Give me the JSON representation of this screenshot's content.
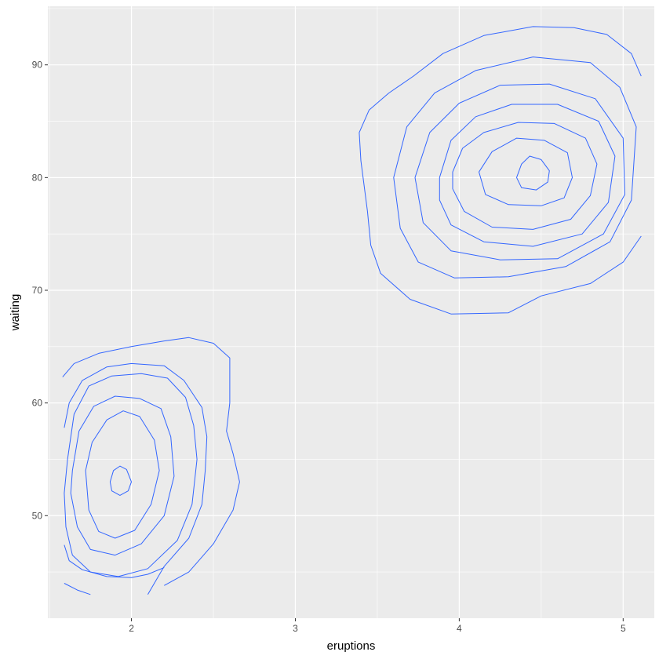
{
  "chart_data": {
    "type": "contour",
    "title": "",
    "xlabel": "eruptions",
    "ylabel": "waiting",
    "xlim": [
      1.49,
      5.19
    ],
    "ylim": [
      40.9,
      95.2
    ],
    "x_ticks": [
      2,
      3,
      4,
      5
    ],
    "y_ticks": [
      50,
      60,
      70,
      80,
      90
    ],
    "grid": true,
    "legend": "none",
    "colors": {
      "panel": "#ebebeb",
      "grid": "#ffffff",
      "line": "#3366ff",
      "tick_text": "#4d4d4d"
    },
    "contours": [
      {
        "name": "",
        "closed": true,
        "points": [
          [
            4.35,
            80
          ],
          [
            4.38,
            81.2
          ],
          [
            4.43,
            81.9
          ],
          [
            4.5,
            81.6
          ],
          [
            4.55,
            80.6
          ],
          [
            4.54,
            79.6
          ],
          [
            4.47,
            78.9
          ],
          [
            4.38,
            79.1
          ],
          [
            4.35,
            80
          ]
        ]
      },
      {
        "name": "",
        "closed": true,
        "points": [
          [
            4.12,
            80.5
          ],
          [
            4.2,
            82.3
          ],
          [
            4.35,
            83.5
          ],
          [
            4.52,
            83.3
          ],
          [
            4.66,
            82.2
          ],
          [
            4.69,
            80
          ],
          [
            4.64,
            78.2
          ],
          [
            4.5,
            77.5
          ],
          [
            4.3,
            77.6
          ],
          [
            4.16,
            78.5
          ],
          [
            4.12,
            80.5
          ]
        ]
      },
      {
        "name": "",
        "closed": true,
        "points": [
          [
            3.96,
            80.5
          ],
          [
            4.02,
            82.6
          ],
          [
            4.15,
            84
          ],
          [
            4.36,
            84.9
          ],
          [
            4.58,
            84.8
          ],
          [
            4.77,
            83.5
          ],
          [
            4.84,
            81.2
          ],
          [
            4.8,
            78.4
          ],
          [
            4.68,
            76.3
          ],
          [
            4.45,
            75.4
          ],
          [
            4.2,
            75.6
          ],
          [
            4.03,
            77
          ],
          [
            3.96,
            79
          ],
          [
            3.96,
            80.5
          ]
        ]
      },
      {
        "name": "",
        "closed": true,
        "points": [
          [
            3.88,
            80
          ],
          [
            3.95,
            83.3
          ],
          [
            4.1,
            85.4
          ],
          [
            4.32,
            86.5
          ],
          [
            4.6,
            86.5
          ],
          [
            4.85,
            85
          ],
          [
            4.95,
            81.9
          ],
          [
            4.91,
            77.8
          ],
          [
            4.75,
            75
          ],
          [
            4.45,
            73.9
          ],
          [
            4.15,
            74.3
          ],
          [
            3.95,
            75.8
          ],
          [
            3.88,
            78
          ],
          [
            3.88,
            80
          ]
        ]
      },
      {
        "name": "",
        "closed": true,
        "points": [
          [
            3.73,
            80
          ],
          [
            3.82,
            84
          ],
          [
            4,
            86.6
          ],
          [
            4.25,
            88.2
          ],
          [
            4.55,
            88.3
          ],
          [
            4.83,
            87
          ],
          [
            5,
            83.5
          ],
          [
            5.01,
            78.5
          ],
          [
            4.88,
            75
          ],
          [
            4.6,
            72.8
          ],
          [
            4.25,
            72.7
          ],
          [
            3.95,
            73.5
          ],
          [
            3.78,
            76
          ],
          [
            3.73,
            80
          ]
        ]
      },
      {
        "name": "",
        "closed": true,
        "points": [
          [
            3.6,
            80
          ],
          [
            3.68,
            84.5
          ],
          [
            3.85,
            87.5
          ],
          [
            4.1,
            89.5
          ],
          [
            4.45,
            90.7
          ],
          [
            4.8,
            90.2
          ],
          [
            4.98,
            88
          ],
          [
            5.08,
            84.5
          ],
          [
            5.05,
            78
          ],
          [
            4.92,
            74.3
          ],
          [
            4.65,
            72.1
          ],
          [
            4.3,
            71.2
          ],
          [
            3.97,
            71.1
          ],
          [
            3.75,
            72.5
          ],
          [
            3.64,
            75.5
          ],
          [
            3.6,
            80
          ]
        ]
      },
      {
        "name": "",
        "closed": false,
        "points": [
          [
            5.11,
            89
          ],
          [
            5.05,
            91
          ],
          [
            4.9,
            92.7
          ],
          [
            4.7,
            93.3
          ],
          [
            4.45,
            93.4
          ],
          [
            4.15,
            92.6
          ],
          [
            3.9,
            91
          ],
          [
            3.72,
            89
          ],
          [
            3.57,
            87.5
          ],
          [
            3.45,
            86
          ],
          [
            3.39,
            84
          ],
          [
            3.4,
            81.5
          ],
          [
            3.44,
            77
          ],
          [
            3.46,
            74
          ],
          [
            3.52,
            71.5
          ],
          [
            3.7,
            69.2
          ],
          [
            3.95,
            67.9
          ],
          [
            4.3,
            68
          ],
          [
            4.5,
            69.5
          ],
          [
            4.8,
            70.6
          ],
          [
            5.0,
            72.5
          ],
          [
            5.11,
            74.8
          ]
        ]
      },
      {
        "name": "",
        "closed": true,
        "points": [
          [
            1.87,
            53
          ],
          [
            1.89,
            54
          ],
          [
            1.93,
            54.4
          ],
          [
            1.97,
            54.1
          ],
          [
            2,
            53
          ],
          [
            1.98,
            52.2
          ],
          [
            1.93,
            51.8
          ],
          [
            1.88,
            52.2
          ],
          [
            1.87,
            53
          ]
        ]
      },
      {
        "name": "",
        "closed": true,
        "points": [
          [
            1.72,
            54
          ],
          [
            1.76,
            56.5
          ],
          [
            1.85,
            58.5
          ],
          [
            1.95,
            59.3
          ],
          [
            2.05,
            58.8
          ],
          [
            2.14,
            56.7
          ],
          [
            2.17,
            54
          ],
          [
            2.12,
            51
          ],
          [
            2.02,
            48.7
          ],
          [
            1.9,
            48
          ],
          [
            1.8,
            48.6
          ],
          [
            1.74,
            50.5
          ],
          [
            1.72,
            54
          ]
        ]
      },
      {
        "name": "",
        "closed": true,
        "points": [
          [
            1.64,
            54
          ],
          [
            1.68,
            57.5
          ],
          [
            1.77,
            59.7
          ],
          [
            1.9,
            60.6
          ],
          [
            2.05,
            60.4
          ],
          [
            2.18,
            59.5
          ],
          [
            2.24,
            57
          ],
          [
            2.26,
            53.5
          ],
          [
            2.2,
            50
          ],
          [
            2.06,
            47.5
          ],
          [
            1.9,
            46.5
          ],
          [
            1.75,
            47
          ],
          [
            1.67,
            49
          ],
          [
            1.63,
            52
          ],
          [
            1.64,
            54
          ]
        ]
      },
      {
        "name": "",
        "closed": true,
        "points": [
          [
            1.61,
            55
          ],
          [
            1.65,
            59
          ],
          [
            1.74,
            61.5
          ],
          [
            1.88,
            62.4
          ],
          [
            2.06,
            62.6
          ],
          [
            2.22,
            62.2
          ],
          [
            2.33,
            60.5
          ],
          [
            2.38,
            58
          ],
          [
            2.4,
            55
          ],
          [
            2.37,
            51
          ],
          [
            2.28,
            47.8
          ],
          [
            2.1,
            45.3
          ],
          [
            1.92,
            44.6
          ],
          [
            1.75,
            45
          ],
          [
            1.64,
            46.5
          ],
          [
            1.6,
            49
          ],
          [
            1.59,
            52
          ],
          [
            1.61,
            55
          ]
        ]
      },
      {
        "name": "",
        "closed": false,
        "points": [
          [
            1.59,
            57.8
          ],
          [
            1.62,
            60
          ],
          [
            1.7,
            62
          ],
          [
            1.85,
            63.2
          ],
          [
            2.0,
            63.5
          ],
          [
            2.2,
            63.3
          ],
          [
            2.32,
            62
          ],
          [
            2.43,
            59.6
          ],
          [
            2.46,
            57
          ],
          [
            2.45,
            54
          ],
          [
            2.43,
            51
          ],
          [
            2.35,
            48
          ],
          [
            2.2,
            45.5
          ],
          [
            2.1,
            43
          ]
        ]
      },
      {
        "name": "",
        "closed": false,
        "points": [
          [
            1.58,
            62.3
          ],
          [
            1.65,
            63.5
          ],
          [
            1.8,
            64.4
          ],
          [
            2.0,
            65
          ],
          [
            2.2,
            65.5
          ],
          [
            2.35,
            65.8
          ],
          [
            2.5,
            65.3
          ],
          [
            2.6,
            64
          ],
          [
            2.6,
            60
          ],
          [
            2.58,
            57.5
          ],
          [
            2.62,
            55.5
          ],
          [
            2.66,
            53
          ],
          [
            2.62,
            50.5
          ],
          [
            2.5,
            47.5
          ],
          [
            2.35,
            45
          ],
          [
            2.2,
            43.8
          ]
        ]
      },
      {
        "name": "",
        "closed": false,
        "points": [
          [
            1.59,
            47.4
          ],
          [
            1.62,
            46
          ],
          [
            1.7,
            45.2
          ],
          [
            1.85,
            44.6
          ],
          [
            2.0,
            44.5
          ],
          [
            2.1,
            44.8
          ],
          [
            2.2,
            45.4
          ]
        ]
      },
      {
        "name": "",
        "closed": false,
        "points": [
          [
            1.59,
            44
          ],
          [
            1.67,
            43.4
          ],
          [
            1.75,
            43
          ]
        ]
      }
    ]
  }
}
